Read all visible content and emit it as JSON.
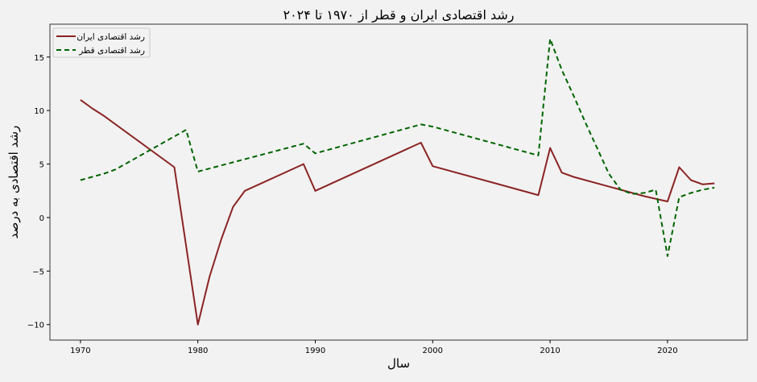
{
  "chart_data": {
    "type": "line",
    "title": "رشد اقتصادی ایران و قطر از ۱۹۷۰ تا ۲۰۲۴",
    "xlabel": "سال",
    "ylabel": "رشد اقتصادی به درصد",
    "xlim": [
      1967.4,
      2026.8
    ],
    "ylim": [
      -11.45,
      18.07
    ],
    "xticks": [
      1970,
      1980,
      1990,
      2000,
      2010,
      2020
    ],
    "yticks": [
      -10,
      -5,
      0,
      5,
      10,
      15
    ],
    "ytick_labels": [
      "−10",
      "−5",
      "0",
      "5",
      "10",
      "15"
    ],
    "grid": false,
    "legend_position": "top-left",
    "background": "#f2f2f2",
    "series": [
      {
        "name": "رشد اقتصادی ایران",
        "color": "#8b2323",
        "style": "solid",
        "x": [
          1970,
          1971,
          1972,
          1978,
          1980,
          1981,
          1982,
          1983,
          1984,
          1989,
          1990,
          1999,
          2000,
          2009,
          2010,
          2011,
          2012,
          2017,
          2018,
          2020,
          2021,
          2022,
          2023,
          2024
        ],
        "y": [
          11.0,
          10.2,
          9.5,
          4.7,
          -10.0,
          -5.5,
          -2.0,
          1.0,
          2.5,
          5.0,
          2.5,
          7.0,
          4.8,
          2.1,
          6.5,
          4.2,
          3.8,
          2.3,
          2.0,
          1.5,
          4.7,
          3.5,
          3.1,
          3.2
        ]
      },
      {
        "name": "رشد اقتصادی قطر",
        "color": "#006400",
        "style": "dashed",
        "x": [
          1970,
          1972,
          1973,
          1979,
          1980,
          1989,
          1990,
          1999,
          2000,
          2009,
          2010,
          2011,
          2012,
          2013,
          2014,
          2015,
          2016,
          2017,
          2018,
          2019,
          2020,
          2021,
          2022,
          2023,
          2024
        ],
        "y": [
          3.5,
          4.1,
          4.5,
          8.2,
          4.3,
          6.9,
          6.0,
          8.7,
          8.5,
          5.8,
          16.7,
          13.8,
          11.4,
          8.9,
          6.5,
          4.1,
          2.6,
          2.2,
          2.3,
          2.6,
          -3.6,
          1.9,
          2.3,
          2.6,
          2.8
        ]
      }
    ]
  }
}
